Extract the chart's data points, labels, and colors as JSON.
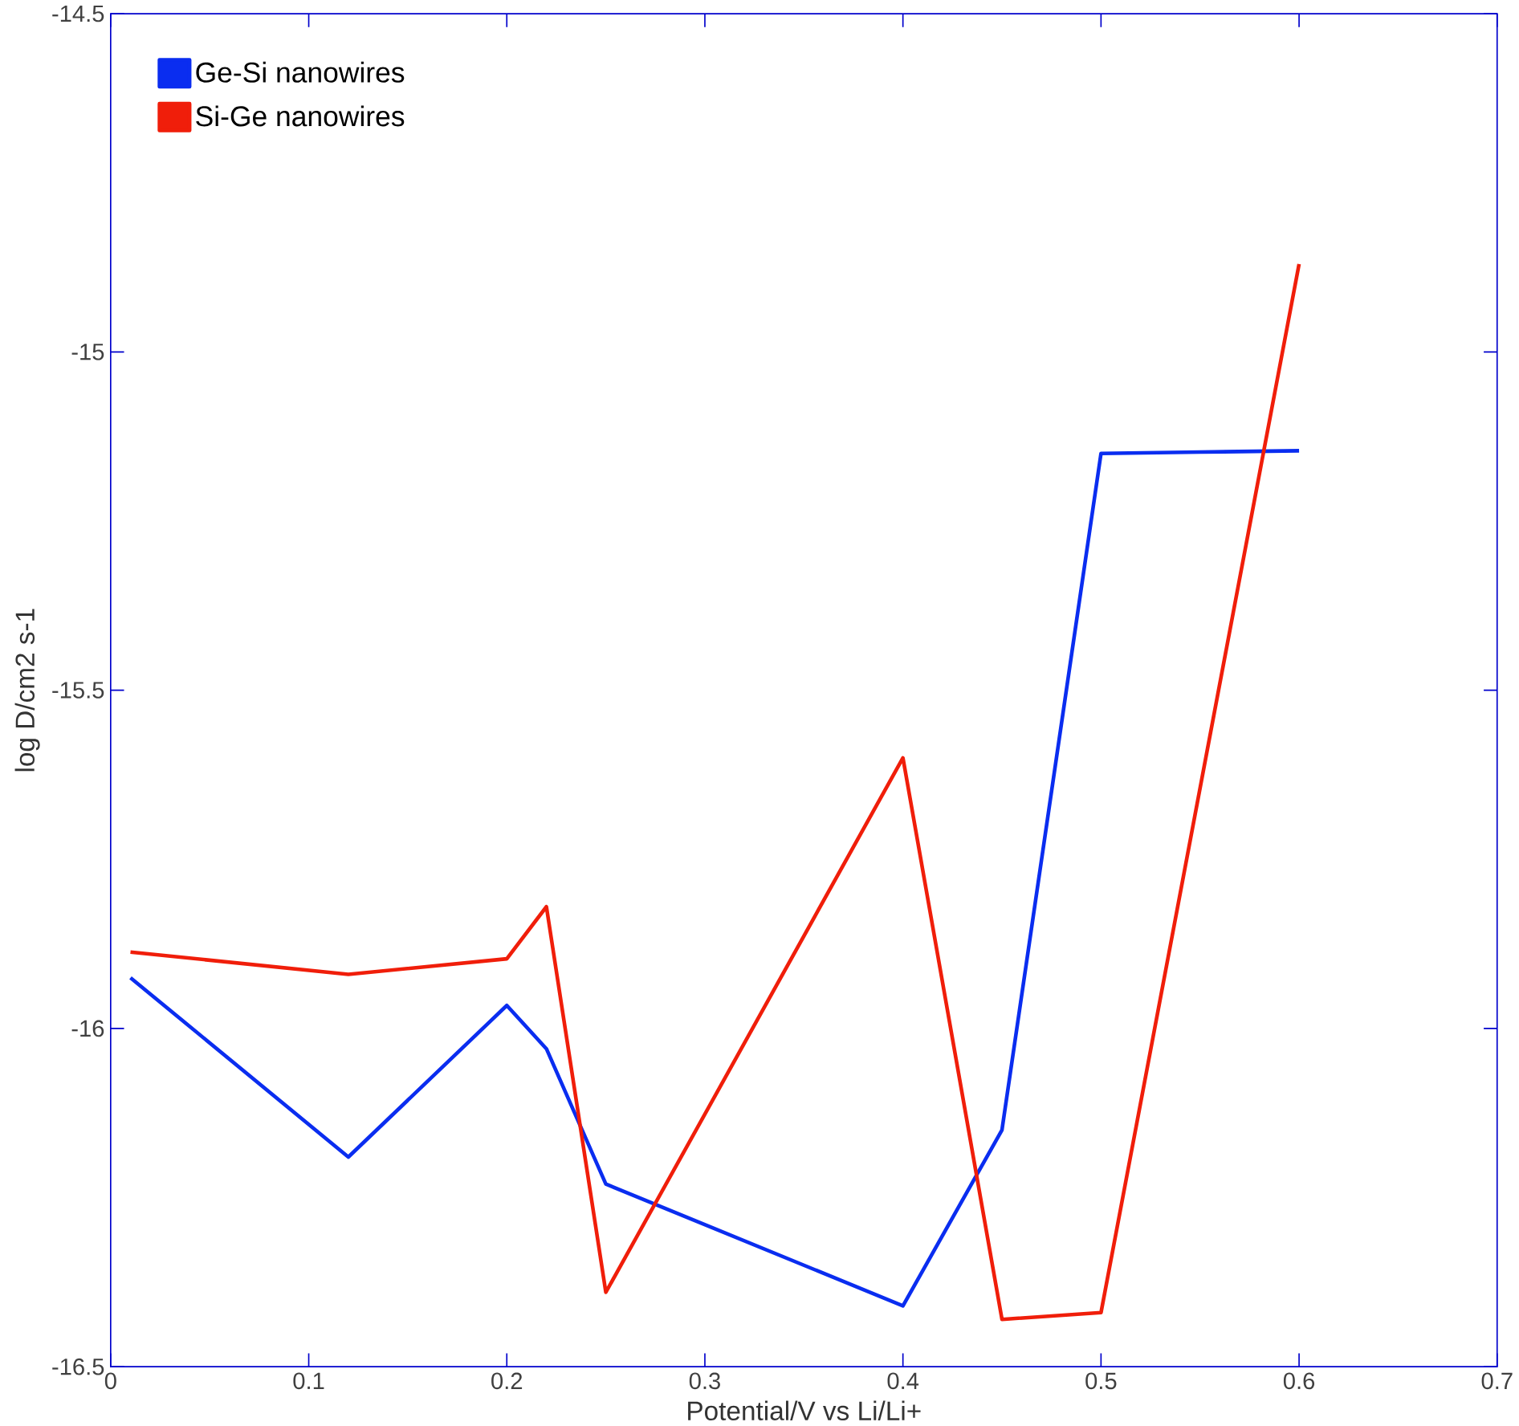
{
  "chart_data": {
    "type": "line",
    "xlabel": "Potential/V vs Li/Li+",
    "ylabel": "log D/cm2 s-1",
    "x": [
      0.01,
      0.12,
      0.2,
      0.22,
      0.25,
      0.4,
      0.45,
      0.5,
      0.55,
      0.6
    ],
    "series": [
      {
        "name": "Ge-Si nanowires",
        "color": "#0a2df0",
        "values": [
          -15.925,
          -16.19,
          -15.966,
          -16.03,
          -16.23,
          -16.41,
          -16.15,
          -15.15,
          -15.148,
          -15.146
        ]
      },
      {
        "name": "Si-Ge nanowires",
        "color": "#f01e0a",
        "x": [
          0.01,
          0.12,
          0.2,
          0.22,
          0.25,
          0.4,
          0.45,
          0.5,
          0.6
        ],
        "values": [
          -15.887,
          -15.92,
          -15.897,
          -15.82,
          -16.39,
          -15.6,
          -16.43,
          -16.42,
          -14.87
        ]
      }
    ],
    "xlim": [
      0,
      0.7
    ],
    "ylim": [
      -16.5,
      -14.5
    ],
    "xticks": [
      0,
      0.1,
      0.2,
      0.3,
      0.4,
      0.5,
      0.6,
      0.7
    ],
    "yticks": [
      -16.5,
      -16,
      -15.5,
      -15,
      -14.5
    ],
    "legend": "top left",
    "grid": false,
    "marker": "none",
    "line_style": "solid"
  }
}
